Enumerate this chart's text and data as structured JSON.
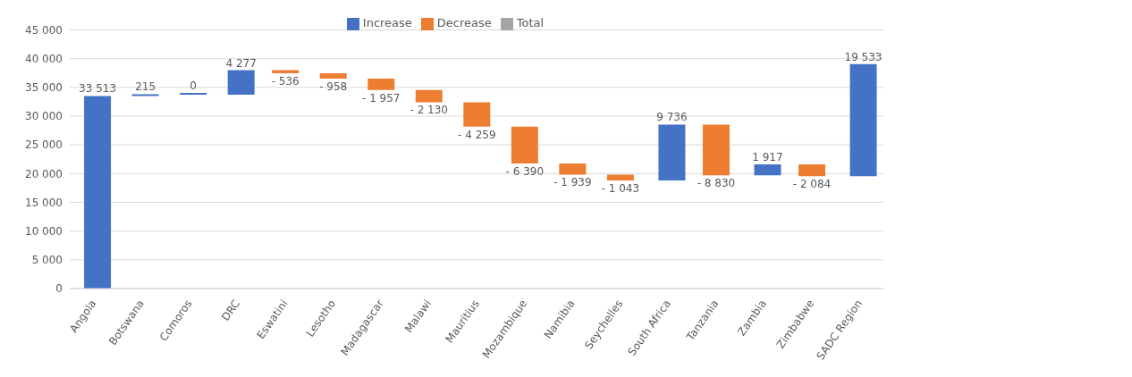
{
  "chart_data": {
    "type": "bar",
    "categories": [
      "Angola",
      "Botswana",
      "Comoros",
      "DRC",
      "Eswatini",
      "Lesotho",
      "Madagascar",
      "Malawi",
      "Mauritius",
      "Mozambique",
      "Namibia",
      "Seychelles",
      "South Africa",
      "Tanzania",
      "Zambia",
      "Zimbabwe",
      "SADC Region"
    ],
    "series": [
      {
        "name": "Increase",
        "color": "#4472c4",
        "values": [
          33513,
          215,
          0,
          4277,
          null,
          null,
          null,
          null,
          null,
          null,
          null,
          null,
          9736,
          null,
          1917,
          null,
          19533
        ],
        "base": [
          0,
          33513,
          33728,
          33728,
          null,
          null,
          null,
          null,
          null,
          null,
          null,
          null,
          18793,
          null,
          19699,
          null,
          19532
        ],
        "value_labels": [
          "33 513",
          "215",
          "0",
          "4 277",
          null,
          null,
          null,
          null,
          null,
          null,
          null,
          null,
          "9 736",
          null,
          "1 917",
          null,
          "19 533"
        ]
      },
      {
        "name": "Decrease",
        "color": "#ed7d31",
        "values": [
          null,
          null,
          null,
          null,
          -536,
          -958,
          -1957,
          -2130,
          -4259,
          -6390,
          -1939,
          -1043,
          null,
          -8830,
          null,
          -2084,
          null
        ],
        "base": [
          null,
          null,
          null,
          null,
          38005,
          37469,
          36511,
          34554,
          32424,
          28165,
          21775,
          19836,
          null,
          28529,
          null,
          21616,
          null
        ],
        "value_labels": [
          null,
          null,
          null,
          null,
          "- 536",
          "- 958",
          "- 1 957",
          "- 2 130",
          "- 4 259",
          "- 6 390",
          "- 1 939",
          "- 1 043",
          null,
          "- 8 830",
          null,
          "- 2 084",
          null
        ]
      },
      {
        "name": "Total",
        "color": "#a5a5a5",
        "values": [
          null,
          null,
          null,
          null,
          null,
          null,
          null,
          null,
          null,
          null,
          null,
          null,
          null,
          null,
          null,
          null,
          null
        ]
      }
    ],
    "ylim": [
      0,
      45000
    ],
    "yticks": [
      {
        "value": 0,
        "label": "0"
      },
      {
        "value": 5000,
        "label": "5 000"
      },
      {
        "value": 10000,
        "label": "10 000"
      },
      {
        "value": 15000,
        "label": "15 000"
      },
      {
        "value": 20000,
        "label": "20 000"
      },
      {
        "value": 25000,
        "label": "25 000"
      },
      {
        "value": 30000,
        "label": "30 000"
      },
      {
        "value": 35000,
        "label": "35 000"
      },
      {
        "value": 40000,
        "label": "40 000"
      },
      {
        "value": 45000,
        "label": "45 000"
      }
    ],
    "grid": "y",
    "legend": "top"
  }
}
